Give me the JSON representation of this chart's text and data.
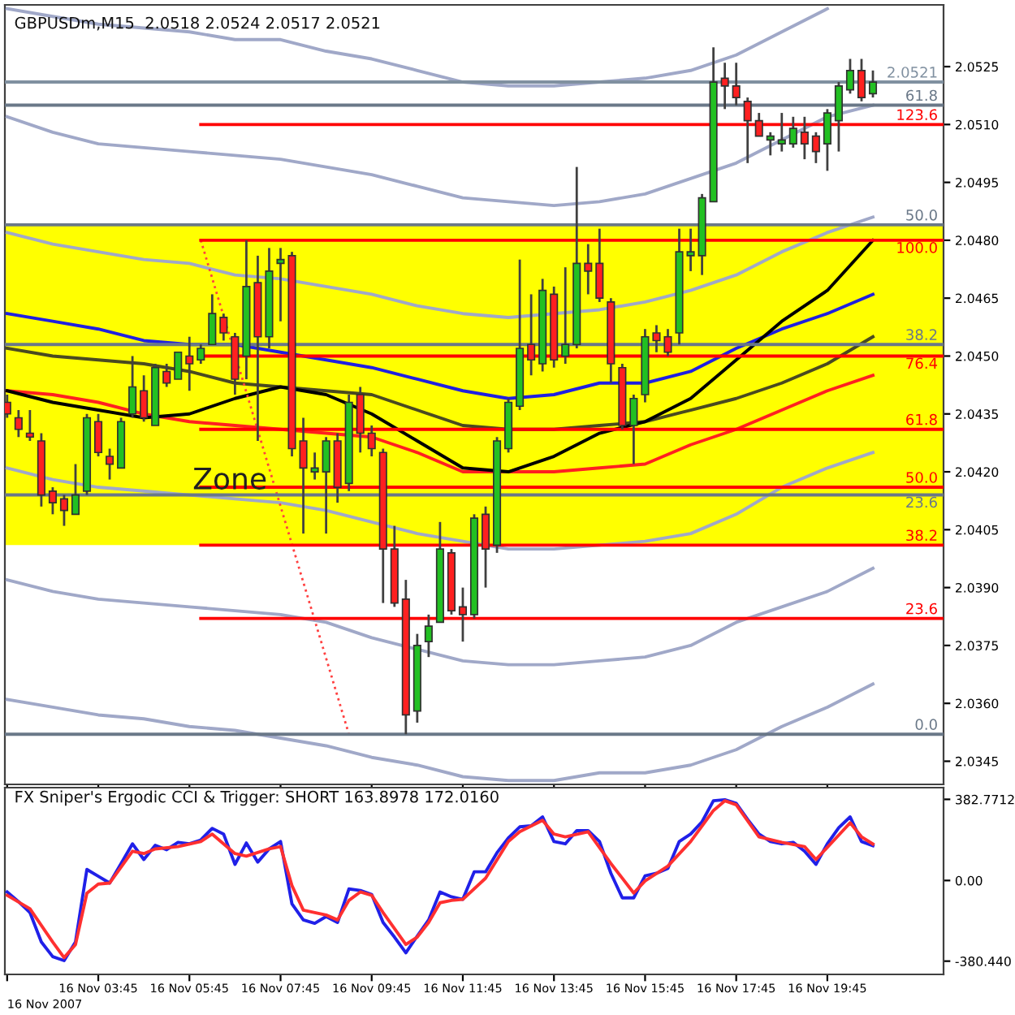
{
  "chart_data": [
    {
      "type": "candlestick",
      "title": "GBPUSDm,M15  2.0518 2.0524 2.0517 2.0521",
      "x": [
        "2007-11-16T01:45",
        "2007-11-16T02:00",
        "2007-11-16T02:15",
        "2007-11-16T02:30",
        "2007-11-16T02:45",
        "2007-11-16T03:00",
        "2007-11-16T03:15",
        "2007-11-16T03:30",
        "2007-11-16T03:45",
        "2007-11-16T04:00",
        "2007-11-16T04:15",
        "2007-11-16T04:30",
        "2007-11-16T04:45",
        "2007-11-16T05:00",
        "2007-11-16T05:15",
        "2007-11-16T05:30",
        "2007-11-16T05:45",
        "2007-11-16T06:00",
        "2007-11-16T06:15",
        "2007-11-16T06:30",
        "2007-11-16T06:45",
        "2007-11-16T07:00",
        "2007-11-16T07:15",
        "2007-11-16T07:30",
        "2007-11-16T07:45",
        "2007-11-16T08:00",
        "2007-11-16T08:15",
        "2007-11-16T08:30",
        "2007-11-16T08:45",
        "2007-11-16T09:00",
        "2007-11-16T09:15",
        "2007-11-16T09:30",
        "2007-11-16T09:45",
        "2007-11-16T10:00",
        "2007-11-16T10:15",
        "2007-11-16T10:30",
        "2007-11-16T10:45",
        "2007-11-16T11:00",
        "2007-11-16T11:15",
        "2007-11-16T11:30",
        "2007-11-16T11:45",
        "2007-11-16T12:00",
        "2007-11-16T12:15",
        "2007-11-16T12:30",
        "2007-11-16T12:45",
        "2007-11-16T13:00",
        "2007-11-16T13:15",
        "2007-11-16T13:30",
        "2007-11-16T13:45",
        "2007-11-16T14:00",
        "2007-11-16T14:15",
        "2007-11-16T14:30",
        "2007-11-16T14:45",
        "2007-11-16T15:00",
        "2007-11-16T15:15",
        "2007-11-16T15:30",
        "2007-11-16T15:45",
        "2007-11-16T16:00",
        "2007-11-16T16:15",
        "2007-11-16T16:30",
        "2007-11-16T16:45",
        "2007-11-16T17:00",
        "2007-11-16T17:15",
        "2007-11-16T17:30",
        "2007-11-16T17:45",
        "2007-11-16T18:00",
        "2007-11-16T18:15",
        "2007-11-16T18:30",
        "2007-11-16T18:45",
        "2007-11-16T19:00",
        "2007-11-16T19:15",
        "2007-11-16T19:30",
        "2007-11-16T19:45",
        "2007-11-16T20:00",
        "2007-11-16T20:15",
        "2007-11-16T20:30",
        "2007-11-16T20:45"
      ],
      "ohlc": [
        [
          2.0438,
          2.044,
          2.0434,
          2.0435
        ],
        [
          2.0434,
          2.0436,
          2.0429,
          2.0431
        ],
        [
          2.043,
          2.0436,
          2.0428,
          2.0429
        ],
        [
          2.0428,
          2.043,
          2.0411,
          2.0414
        ],
        [
          2.0415,
          2.0416,
          2.0409,
          2.0412
        ],
        [
          2.0413,
          2.0414,
          2.0406,
          2.041
        ],
        [
          2.0409,
          2.0422,
          2.0409,
          2.0414
        ],
        [
          2.0415,
          2.0435,
          2.0414,
          2.0434
        ],
        [
          2.0433,
          2.0435,
          2.0424,
          2.0425
        ],
        [
          2.0424,
          2.0426,
          2.0418,
          2.0422
        ],
        [
          2.0421,
          2.0434,
          2.0421,
          2.0433
        ],
        [
          2.0435,
          2.045,
          2.0434,
          2.0442
        ],
        [
          2.0441,
          2.0445,
          2.0433,
          2.0434
        ],
        [
          2.0432,
          2.0448,
          2.0432,
          2.0447
        ],
        [
          2.0446,
          2.0448,
          2.0442,
          2.0443
        ],
        [
          2.0444,
          2.0451,
          2.0444,
          2.0451
        ],
        [
          2.045,
          2.0455,
          2.0441,
          2.0448
        ],
        [
          2.0449,
          2.0453,
          2.0448,
          2.0452
        ],
        [
          2.0453,
          2.0466,
          2.0453,
          2.0461
        ],
        [
          2.046,
          2.0461,
          2.0454,
          2.0456
        ],
        [
          2.0455,
          2.0456,
          2.044,
          2.0444
        ],
        [
          2.045,
          2.048,
          2.0444,
          2.0468
        ],
        [
          2.0469,
          2.0476,
          2.0428,
          2.0455
        ],
        [
          2.0455,
          2.0478,
          2.0452,
          2.0472
        ],
        [
          2.0474,
          2.0478,
          2.0459,
          2.0475
        ],
        [
          2.0476,
          2.0477,
          2.0424,
          2.0426
        ],
        [
          2.0428,
          2.0434,
          2.0404,
          2.0421
        ],
        [
          2.042,
          2.0425,
          2.0418,
          2.0421
        ],
        [
          2.042,
          2.0429,
          2.0404,
          2.0428
        ],
        [
          2.0428,
          2.043,
          2.0412,
          2.0416
        ],
        [
          2.0417,
          2.044,
          2.0415,
          2.0438
        ],
        [
          2.044,
          2.0442,
          2.0425,
          2.043
        ],
        [
          2.043,
          2.0432,
          2.0424,
          2.0426
        ],
        [
          2.0425,
          2.0426,
          2.0386,
          2.04
        ],
        [
          2.04,
          2.0406,
          2.0385,
          2.0386
        ],
        [
          2.0387,
          2.0392,
          2.0352,
          2.0357
        ],
        [
          2.0358,
          2.0378,
          2.0355,
          2.0375
        ],
        [
          2.0376,
          2.0383,
          2.0372,
          2.038
        ],
        [
          2.0381,
          2.0407,
          2.0381,
          2.04
        ],
        [
          2.0399,
          2.04,
          2.0383,
          2.0384
        ],
        [
          2.0385,
          2.039,
          2.0376,
          2.0383
        ],
        [
          2.0383,
          2.0409,
          2.0382,
          2.0408
        ],
        [
          2.0409,
          2.0411,
          2.039,
          2.04
        ],
        [
          2.0401,
          2.0429,
          2.0399,
          2.0428
        ],
        [
          2.0426,
          2.0439,
          2.0425,
          2.0438
        ],
        [
          2.0437,
          2.0475,
          2.0436,
          2.0452
        ],
        [
          2.0453,
          2.0466,
          2.0445,
          2.0449
        ],
        [
          2.0448,
          2.047,
          2.0446,
          2.0467
        ],
        [
          2.0466,
          2.0468,
          2.0447,
          2.0449
        ],
        [
          2.045,
          2.0473,
          2.0448,
          2.0453
        ],
        [
          2.0453,
          2.0499,
          2.0452,
          2.0474
        ],
        [
          2.0474,
          2.0479,
          2.0466,
          2.0472
        ],
        [
          2.0474,
          2.0483,
          2.0464,
          2.0465
        ],
        [
          2.0464,
          2.0465,
          2.0443,
          2.0448
        ],
        [
          2.0447,
          2.0448,
          2.0431,
          2.0432
        ],
        [
          2.0432,
          2.044,
          2.0422,
          2.0439
        ],
        [
          2.044,
          2.0457,
          2.0438,
          2.0455
        ],
        [
          2.0456,
          2.0458,
          2.0451,
          2.0454
        ],
        [
          2.0455,
          2.0457,
          2.045,
          2.0451
        ],
        [
          2.0456,
          2.0483,
          2.0453,
          2.0477
        ],
        [
          2.0476,
          2.0483,
          2.0472,
          2.0477
        ],
        [
          2.0476,
          2.0492,
          2.0471,
          2.0491
        ],
        [
          2.049,
          2.053,
          2.049,
          2.0521
        ],
        [
          2.0522,
          2.0526,
          2.0514,
          2.052
        ],
        [
          2.052,
          2.0526,
          2.0515,
          2.0517
        ],
        [
          2.0516,
          2.0517,
          2.05,
          2.0511
        ],
        [
          2.0511,
          2.0513,
          2.0507,
          2.0507
        ],
        [
          2.0506,
          2.0508,
          2.0502,
          2.0507
        ],
        [
          2.0505,
          2.0513,
          2.0503,
          2.0506
        ],
        [
          2.0505,
          2.0512,
          2.0504,
          2.0509
        ],
        [
          2.0508,
          2.0512,
          2.0501,
          2.0505
        ],
        [
          2.0507,
          2.0508,
          2.05,
          2.0503
        ],
        [
          2.0505,
          2.0514,
          2.0498,
          2.0513
        ],
        [
          2.0511,
          2.0521,
          2.0503,
          2.052
        ],
        [
          2.0519,
          2.0527,
          2.0518,
          2.0524
        ],
        [
          2.0524,
          2.0527,
          2.0516,
          2.0517
        ],
        [
          2.0518,
          2.0524,
          2.0517,
          2.0521
        ]
      ],
      "colors": [
        "#ff2020",
        "#ff2020",
        "#ff2020",
        "#ff2020",
        "#ff2020",
        "#ff2020",
        "#22c022",
        "#22c022",
        "#ff2020",
        "#ff2020",
        "#22c022",
        "#22c022",
        "#ff2020",
        "#22c022",
        "#ff2020",
        "#22c022",
        "#ff2020",
        "#22c022",
        "#22c022",
        "#ff2020",
        "#ff2020",
        "#22c022",
        "#ff2020",
        "#22c022",
        "#22c022",
        "#ff2020",
        "#ff2020",
        "#22c022",
        "#22c022",
        "#ff2020",
        "#22c022",
        "#ff2020",
        "#ff2020",
        "#ff2020",
        "#ff2020",
        "#ff2020",
        "#22c022",
        "#22c022",
        "#22c022",
        "#ff2020",
        "#ff2020",
        "#22c022",
        "#ff2020",
        "#22c022",
        "#22c022",
        "#22c022",
        "#ff2020",
        "#22c022",
        "#ff2020",
        "#22c022",
        "#22c022",
        "#ff2020",
        "#ff2020",
        "#ff2020",
        "#ff2020",
        "#22c022",
        "#22c022",
        "#ff2020",
        "#ff2020",
        "#22c022",
        "#22c022",
        "#22c022",
        "#22c022",
        "#ff2020",
        "#ff2020",
        "#ff2020",
        "#ff2020",
        "#22c022",
        "#22c022",
        "#22c022",
        "#ff2020",
        "#ff2020",
        "#22c022",
        "#22c022",
        "#22c022",
        "#ff2020",
        "#22c022"
      ],
      "series": [
        {
          "type": "line",
          "color": "#a0a8c8",
          "x": [
            "2007-11-16T01:45",
            "2007-11-16T02:45",
            "2007-11-16T03:45",
            "2007-11-16T04:45",
            "2007-11-16T05:45",
            "2007-11-16T06:45",
            "2007-11-16T07:45",
            "2007-11-16T08:45",
            "2007-11-16T09:45",
            "2007-11-16T10:45",
            "2007-11-16T11:45",
            "2007-11-16T12:45",
            "2007-11-16T13:45",
            "2007-11-16T14:45",
            "2007-11-16T15:45",
            "2007-11-16T16:45",
            "2007-11-16T17:45",
            "2007-11-16T18:45",
            "2007-11-16T19:45"
          ],
          "values": [
            2.054,
            2.0538,
            2.0536,
            2.0535,
            2.0534,
            2.0532,
            2.0532,
            2.0529,
            2.0527,
            2.0524,
            2.0521,
            2.052,
            2.052,
            2.0521,
            2.0522,
            2.0524,
            2.0528,
            2.0534,
            2.054
          ]
        },
        {
          "type": "line",
          "color": "#a0a8c8",
          "x": [
            "2007-11-16T01:45",
            "2007-11-16T02:45",
            "2007-11-16T03:45",
            "2007-11-16T04:45",
            "2007-11-16T05:45",
            "2007-11-16T06:45",
            "2007-11-16T07:45",
            "2007-11-16T08:45",
            "2007-11-16T09:45",
            "2007-11-16T10:45",
            "2007-11-16T11:45",
            "2007-11-16T12:45",
            "2007-11-16T13:45",
            "2007-11-16T14:45",
            "2007-11-16T15:45",
            "2007-11-16T16:45",
            "2007-11-16T17:45",
            "2007-11-16T18:45",
            "2007-11-16T19:45",
            "2007-11-16T20:45"
          ],
          "values": [
            2.0512,
            2.0508,
            2.0505,
            2.0504,
            2.0503,
            2.0502,
            2.0501,
            2.0499,
            2.0497,
            2.0494,
            2.0491,
            2.049,
            2.0489,
            2.049,
            2.0492,
            2.0496,
            2.05,
            2.0506,
            2.0512,
            2.0515
          ]
        },
        {
          "type": "line",
          "color": "#a0a8c8",
          "x": [
            "2007-11-16T01:45",
            "2007-11-16T02:45",
            "2007-11-16T03:45",
            "2007-11-16T04:45",
            "2007-11-16T05:45",
            "2007-11-16T06:45",
            "2007-11-16T07:45",
            "2007-11-16T08:45",
            "2007-11-16T09:45",
            "2007-11-16T10:45",
            "2007-11-16T11:45",
            "2007-11-16T12:45",
            "2007-11-16T13:45",
            "2007-11-16T14:45",
            "2007-11-16T15:45",
            "2007-11-16T16:45",
            "2007-11-16T17:45",
            "2007-11-16T18:45",
            "2007-11-16T19:45",
            "2007-11-16T20:45"
          ],
          "values": [
            2.0482,
            2.0479,
            2.0477,
            2.0475,
            2.0474,
            2.0471,
            2.047,
            2.0468,
            2.0466,
            2.0463,
            2.0461,
            2.046,
            2.0461,
            2.0462,
            2.0464,
            2.0467,
            2.0471,
            2.0477,
            2.0482,
            2.0486
          ]
        },
        {
          "type": "line",
          "color": "#a0a8c8",
          "x": [
            "2007-11-16T01:45",
            "2007-11-16T02:45",
            "2007-11-16T03:45",
            "2007-11-16T04:45",
            "2007-11-16T05:45",
            "2007-11-16T06:45",
            "2007-11-16T07:45",
            "2007-11-16T08:45",
            "2007-11-16T09:45",
            "2007-11-16T10:45",
            "2007-11-16T11:45",
            "2007-11-16T12:45",
            "2007-11-16T13:45",
            "2007-11-16T14:45",
            "2007-11-16T15:45",
            "2007-11-16T16:45",
            "2007-11-16T17:45",
            "2007-11-16T18:45",
            "2007-11-16T19:45",
            "2007-11-16T20:45"
          ],
          "values": [
            2.0421,
            2.0418,
            2.0416,
            2.0415,
            2.0414,
            2.0413,
            2.0412,
            2.041,
            2.0407,
            2.0404,
            2.0402,
            2.04,
            2.04,
            2.0401,
            2.0402,
            2.0404,
            2.0409,
            2.0416,
            2.0421,
            2.0425
          ]
        },
        {
          "type": "line",
          "color": "#a0a8c8",
          "x": [
            "2007-11-16T01:45",
            "2007-11-16T02:45",
            "2007-11-16T03:45",
            "2007-11-16T04:45",
            "2007-11-16T05:45",
            "2007-11-16T06:45",
            "2007-11-16T07:45",
            "2007-11-16T08:45",
            "2007-11-16T09:45",
            "2007-11-16T10:45",
            "2007-11-16T11:45",
            "2007-11-16T12:45",
            "2007-11-16T13:45",
            "2007-11-16T14:45",
            "2007-11-16T15:45",
            "2007-11-16T16:45",
            "2007-11-16T17:45",
            "2007-11-16T18:45",
            "2007-11-16T19:45",
            "2007-11-16T20:45"
          ],
          "values": [
            2.0392,
            2.0389,
            2.0387,
            2.0386,
            2.0385,
            2.0384,
            2.0383,
            2.0381,
            2.0377,
            2.0374,
            2.0371,
            2.037,
            2.037,
            2.0371,
            2.0372,
            2.0375,
            2.0381,
            2.0385,
            2.0389,
            2.0395
          ]
        },
        {
          "type": "line",
          "color": "#a0a8c8",
          "x": [
            "2007-11-16T01:45",
            "2007-11-16T02:45",
            "2007-11-16T03:45",
            "2007-11-16T04:45",
            "2007-11-16T05:45",
            "2007-11-16T06:45",
            "2007-11-16T07:45",
            "2007-11-16T08:45",
            "2007-11-16T09:45",
            "2007-11-16T10:45",
            "2007-11-16T11:45",
            "2007-11-16T12:45",
            "2007-11-16T13:45",
            "2007-11-16T14:45",
            "2007-11-16T15:45",
            "2007-11-16T16:45",
            "2007-11-16T17:45",
            "2007-11-16T18:45",
            "2007-11-16T19:45",
            "2007-11-16T20:45"
          ],
          "values": [
            2.0361,
            2.0359,
            2.0357,
            2.0356,
            2.0354,
            2.0353,
            2.0351,
            2.0349,
            2.0346,
            2.0344,
            2.0341,
            2.034,
            2.034,
            2.0342,
            2.0342,
            2.0344,
            2.0348,
            2.0354,
            2.0359,
            2.0365
          ]
        },
        {
          "type": "line",
          "color": "#4a4a20",
          "x": [
            "2007-11-16T01:45",
            "2007-11-16T02:45",
            "2007-11-16T03:45",
            "2007-11-16T04:45",
            "2007-11-16T05:45",
            "2007-11-16T06:45",
            "2007-11-16T07:45",
            "2007-11-16T08:45",
            "2007-11-16T09:45",
            "2007-11-16T10:45",
            "2007-11-16T11:45",
            "2007-11-16T12:45",
            "2007-11-16T13:45",
            "2007-11-16T14:45",
            "2007-11-16T15:45",
            "2007-11-16T16:45",
            "2007-11-16T17:45",
            "2007-11-16T18:45",
            "2007-11-16T19:45",
            "2007-11-16T20:45"
          ],
          "values": [
            2.0452,
            2.045,
            2.0449,
            2.0448,
            2.0446,
            2.0443,
            2.0442,
            2.0441,
            2.044,
            2.0436,
            2.0432,
            2.0431,
            2.0431,
            2.0432,
            2.0433,
            2.0436,
            2.0439,
            2.0443,
            2.0448,
            2.0455
          ]
        },
        {
          "type": "line",
          "color": "#ff2020",
          "x": [
            "2007-11-16T01:45",
            "2007-11-16T02:45",
            "2007-11-16T03:45",
            "2007-11-16T04:45",
            "2007-11-16T05:45",
            "2007-11-16T06:45",
            "2007-11-16T07:45",
            "2007-11-16T08:45",
            "2007-11-16T09:45",
            "2007-11-16T10:45",
            "2007-11-16T11:45",
            "2007-11-16T12:45",
            "2007-11-16T13:45",
            "2007-11-16T14:45",
            "2007-11-16T15:45",
            "2007-11-16T16:45",
            "2007-11-16T17:45",
            "2007-11-16T18:45",
            "2007-11-16T19:45",
            "2007-11-16T20:45"
          ],
          "values": [
            2.0441,
            2.044,
            2.0438,
            2.0435,
            2.0433,
            2.0432,
            2.0431,
            2.043,
            2.0429,
            2.0425,
            2.042,
            2.042,
            2.042,
            2.0421,
            2.0422,
            2.0427,
            2.0431,
            2.0436,
            2.0441,
            2.0445
          ]
        },
        {
          "type": "line",
          "color": "#2020e0",
          "x": [
            "2007-11-16T01:45",
            "2007-11-16T02:45",
            "2007-11-16T03:45",
            "2007-11-16T04:45",
            "2007-11-16T05:45",
            "2007-11-16T06:45",
            "2007-11-16T07:45",
            "2007-11-16T08:45",
            "2007-11-16T09:45",
            "2007-11-16T10:45",
            "2007-11-16T11:45",
            "2007-11-16T12:45",
            "2007-11-16T13:45",
            "2007-11-16T14:45",
            "2007-11-16T15:45",
            "2007-11-16T16:45",
            "2007-11-16T17:45",
            "2007-11-16T18:45",
            "2007-11-16T19:45",
            "2007-11-16T20:45"
          ],
          "values": [
            2.0461,
            2.0459,
            2.0457,
            2.0454,
            2.0453,
            2.0453,
            2.0451,
            2.0449,
            2.0447,
            2.0444,
            2.0441,
            2.0439,
            2.044,
            2.0443,
            2.0443,
            2.0446,
            2.0452,
            2.0457,
            2.0461,
            2.0466
          ]
        },
        {
          "type": "line",
          "color": "#000000",
          "x": [
            "2007-11-16T01:45",
            "2007-11-16T02:45",
            "2007-11-16T03:45",
            "2007-11-16T04:45",
            "2007-11-16T05:45",
            "2007-11-16T06:45",
            "2007-11-16T07:45",
            "2007-11-16T08:45",
            "2007-11-16T09:45",
            "2007-11-16T10:45",
            "2007-11-16T11:45",
            "2007-11-16T12:45",
            "2007-11-16T13:45",
            "2007-11-16T14:45",
            "2007-11-16T15:45",
            "2007-11-16T16:45",
            "2007-11-16T17:45",
            "2007-11-16T18:45",
            "2007-11-16T19:45",
            "2007-11-16T20:45"
          ],
          "values": [
            2.0441,
            2.0438,
            2.0436,
            2.0434,
            2.0435,
            2.0439,
            2.0442,
            2.044,
            2.0435,
            2.0428,
            2.0421,
            2.042,
            2.0424,
            2.043,
            2.0433,
            2.0439,
            2.0449,
            2.0459,
            2.0467,
            2.048
          ]
        },
        {
          "type": "line",
          "color": "#ff4040",
          "line_style": "dotted",
          "x": [
            "2007-11-16T06:00",
            "2007-11-16T09:15"
          ],
          "values": [
            2.048,
            2.0352
          ]
        },
        {
          "type": "line",
          "name": "2.0521",
          "color": "#8090a0",
          "x": [
            "2007-11-16T01:42",
            "2007-11-16T22:18"
          ],
          "values": [
            2.0521,
            2.0521
          ]
        },
        {
          "type": "line",
          "name": "61.8",
          "color": "#6a7888",
          "x": [
            "2007-11-16T01:42",
            "2007-11-16T22:18"
          ],
          "values": [
            2.0515,
            2.0515
          ]
        },
        {
          "type": "line",
          "name": "123.6",
          "color": "#ff0000",
          "x": [
            "2007-11-16T06:00",
            "2007-11-16T22:18"
          ],
          "values": [
            2.051,
            2.051
          ]
        },
        {
          "type": "line",
          "name": "50.0",
          "color": "#6a7888",
          "x": [
            "2007-11-16T01:42",
            "2007-11-16T22:18"
          ],
          "values": [
            2.0484,
            2.0484
          ]
        },
        {
          "type": "line",
          "name": "100.0",
          "color": "#ff0000",
          "x": [
            "2007-11-16T06:00",
            "2007-11-16T22:18"
          ],
          "values": [
            2.048,
            2.048
          ]
        },
        {
          "type": "line",
          "name": "38.2",
          "color": "#6a7888",
          "x": [
            "2007-11-16T01:42",
            "2007-11-16T22:18"
          ],
          "values": [
            2.0453,
            2.0453
          ]
        },
        {
          "type": "line",
          "name": "76.4",
          "color": "#ff0000",
          "x": [
            "2007-11-16T06:00",
            "2007-11-16T22:18"
          ],
          "values": [
            2.045,
            2.045
          ]
        },
        {
          "type": "line",
          "name": "61.8",
          "color": "#ff0000",
          "x": [
            "2007-11-16T06:00",
            "2007-11-16T22:18"
          ],
          "values": [
            2.0431,
            2.0431
          ]
        },
        {
          "type": "line",
          "name": "50.0",
          "color": "#ff0000",
          "x": [
            "2007-11-16T06:00",
            "2007-11-16T22:18"
          ],
          "values": [
            2.0416,
            2.0416
          ]
        },
        {
          "type": "line",
          "name": "23.6",
          "color": "#6a7888",
          "x": [
            "2007-11-16T01:42",
            "2007-11-16T22:18"
          ],
          "values": [
            2.0414,
            2.0414
          ]
        },
        {
          "type": "line",
          "name": "38.2",
          "color": "#ff0000",
          "x": [
            "2007-11-16T06:00",
            "2007-11-16T22:18"
          ],
          "values": [
            2.0401,
            2.0401
          ]
        },
        {
          "type": "line",
          "name": "23.6",
          "color": "#ff0000",
          "x": [
            "2007-11-16T06:00",
            "2007-11-16T22:18"
          ],
          "values": [
            2.0382,
            2.0382
          ]
        },
        {
          "type": "line",
          "name": "0.0",
          "color": "#6a7888",
          "x": [
            "2007-11-16T01:42",
            "2007-11-16T22:18"
          ],
          "values": [
            2.0352,
            2.0352
          ]
        }
      ],
      "bands": [
        {
          "axis": "y",
          "from": 2.0401,
          "to": 2.0484,
          "label": "Zone",
          "color": "#ffff00"
        }
      ],
      "xlim": [
        "2007-11-16T01:42",
        "2007-11-16T22:18"
      ],
      "ylim": [
        2.0339,
        2.0541
      ],
      "xticks": [
        {
          "value": "2007-11-16T01:45",
          "label": null
        },
        {
          "value": "2007-11-16T03:45",
          "label": null
        },
        {
          "value": "2007-11-16T05:45",
          "label": null
        },
        {
          "value": "2007-11-16T07:45",
          "label": null
        },
        {
          "value": "2007-11-16T09:45",
          "label": null
        },
        {
          "value": "2007-11-16T11:45",
          "label": null
        },
        {
          "value": "2007-11-16T13:45",
          "label": null
        },
        {
          "value": "2007-11-16T15:45",
          "label": null
        },
        {
          "value": "2007-11-16T17:45",
          "label": null
        },
        {
          "value": "2007-11-16T19:45",
          "label": null
        }
      ],
      "yticks": [
        2.0525,
        {
          "value": 2.051,
          "label": "2.0510"
        },
        2.0495,
        {
          "value": 2.048,
          "label": "2.0480"
        },
        2.0465,
        {
          "value": 2.045,
          "label": "2.0450"
        },
        2.0435,
        {
          "value": 2.042,
          "label": "2.0420"
        },
        2.0405,
        {
          "value": 2.039,
          "label": "2.0390"
        },
        2.0375,
        {
          "value": 2.036,
          "label": "2.0360"
        },
        2.0345
      ],
      "tick_labels": "y"
    },
    {
      "type": "line",
      "title": "FX Sniper's Ergodic CCI & Trigger: SHORT 163.8978 172.0160",
      "x": [
        "2007-11-16T01:45",
        "2007-11-16T02:00",
        "2007-11-16T02:15",
        "2007-11-16T02:30",
        "2007-11-16T02:45",
        "2007-11-16T03:00",
        "2007-11-16T03:15",
        "2007-11-16T03:30",
        "2007-11-16T03:45",
        "2007-11-16T04:00",
        "2007-11-16T04:15",
        "2007-11-16T04:30",
        "2007-11-16T04:45",
        "2007-11-16T05:00",
        "2007-11-16T05:15",
        "2007-11-16T05:30",
        "2007-11-16T05:45",
        "2007-11-16T06:00",
        "2007-11-16T06:15",
        "2007-11-16T06:30",
        "2007-11-16T06:45",
        "2007-11-16T07:00",
        "2007-11-16T07:15",
        "2007-11-16T07:30",
        "2007-11-16T07:45",
        "2007-11-16T08:00",
        "2007-11-16T08:15",
        "2007-11-16T08:30",
        "2007-11-16T08:45",
        "2007-11-16T09:00",
        "2007-11-16T09:15",
        "2007-11-16T09:30",
        "2007-11-16T09:45",
        "2007-11-16T10:00",
        "2007-11-16T10:15",
        "2007-11-16T10:30",
        "2007-11-16T10:45",
        "2007-11-16T11:00",
        "2007-11-16T11:15",
        "2007-11-16T11:30",
        "2007-11-16T11:45",
        "2007-11-16T12:00",
        "2007-11-16T12:15",
        "2007-11-16T12:30",
        "2007-11-16T12:45",
        "2007-11-16T13:00",
        "2007-11-16T13:15",
        "2007-11-16T13:30",
        "2007-11-16T13:45",
        "2007-11-16T14:00",
        "2007-11-16T14:15",
        "2007-11-16T14:30",
        "2007-11-16T14:45",
        "2007-11-16T15:00",
        "2007-11-16T15:15",
        "2007-11-16T15:30",
        "2007-11-16T15:45",
        "2007-11-16T16:00",
        "2007-11-16T16:15",
        "2007-11-16T16:30",
        "2007-11-16T16:45",
        "2007-11-16T17:00",
        "2007-11-16T17:15",
        "2007-11-16T17:30",
        "2007-11-16T17:45",
        "2007-11-16T18:00",
        "2007-11-16T18:15",
        "2007-11-16T18:30",
        "2007-11-16T18:45",
        "2007-11-16T19:00",
        "2007-11-16T19:15",
        "2007-11-16T19:30",
        "2007-11-16T19:45",
        "2007-11-16T20:00",
        "2007-11-16T20:15",
        "2007-11-16T20:30",
        "2007-11-16T20:45"
      ],
      "series": [
        {
          "color": "#2020e8",
          "values": [
            -54,
            -100,
            -151,
            -290,
            -359,
            -378,
            -290,
            52,
            20,
            -12,
            80,
            173,
            99,
            166,
            145,
            180,
            173,
            191,
            246,
            219,
            76,
            177,
            87,
            149,
            184,
            -110,
            -186,
            -202,
            -170,
            -198,
            -40,
            -47,
            -66,
            -198,
            -267,
            -341,
            -262,
            -186,
            -54,
            -77,
            -89,
            41,
            41,
            131,
            201,
            253,
            258,
            300,
            184,
            173,
            235,
            235,
            184,
            34,
            -82,
            -82,
            22,
            34,
            57,
            184,
            219,
            277,
            376,
            381,
            364,
            288,
            219,
            184,
            173,
            180,
            138,
            76,
            173,
            249,
            300,
            184,
            164
          ]
        },
        {
          "color": "#ff3030",
          "x": [
            "2007-11-16T01:45",
            "2007-11-16T02:15",
            "2007-11-16T02:45",
            "2007-11-16T03:00",
            "2007-11-16T03:15",
            "2007-11-16T03:30",
            "2007-11-16T03:45",
            "2007-11-16T04:00",
            "2007-11-16T04:30",
            "2007-11-16T04:45",
            "2007-11-16T05:00",
            "2007-11-16T05:30",
            "2007-11-16T06:00",
            "2007-11-16T06:15",
            "2007-11-16T06:45",
            "2007-11-16T07:00",
            "2007-11-16T07:30",
            "2007-11-16T07:45",
            "2007-11-16T08:00",
            "2007-11-16T08:15",
            "2007-11-16T08:45",
            "2007-11-16T09:00",
            "2007-11-16T09:15",
            "2007-11-16T09:30",
            "2007-11-16T09:45",
            "2007-11-16T10:00",
            "2007-11-16T10:30",
            "2007-11-16T10:45",
            "2007-11-16T11:00",
            "2007-11-16T11:15",
            "2007-11-16T11:30",
            "2007-11-16T11:45",
            "2007-11-16T12:15",
            "2007-11-16T12:45",
            "2007-11-16T13:00",
            "2007-11-16T13:30",
            "2007-11-16T13:45",
            "2007-11-16T14:00",
            "2007-11-16T14:30",
            "2007-11-16T15:00",
            "2007-11-16T15:30",
            "2007-11-16T15:45",
            "2007-11-16T16:15",
            "2007-11-16T16:45",
            "2007-11-16T17:15",
            "2007-11-16T17:30",
            "2007-11-16T17:45",
            "2007-11-16T18:15",
            "2007-11-16T18:45",
            "2007-11-16T19:15",
            "2007-11-16T19:30",
            "2007-11-16T20:00",
            "2007-11-16T20:15",
            "2007-11-16T20:30",
            "2007-11-16T20:45"
          ],
          "values": [
            -70,
            -133,
            -290,
            -364,
            -302,
            -60,
            -17,
            -12,
            138,
            127,
            149,
            160,
            184,
            219,
            127,
            115,
            149,
            160,
            -24,
            -140,
            -163,
            -186,
            -94,
            -54,
            -70,
            -151,
            -302,
            -267,
            -198,
            -105,
            -94,
            -89,
            11,
            184,
            230,
            284,
            219,
            206,
            230,
            80,
            -59,
            -2,
            68,
            184,
            330,
            376,
            357,
            206,
            180,
            160,
            99,
            214,
            272,
            206,
            172
          ]
        }
      ],
      "xlim": [
        "2007-11-16T01:42",
        "2007-11-16T22:18"
      ],
      "ylim": [
        -443,
        438
      ],
      "annotations": [
        "16 Nov 2007"
      ],
      "xticks": [
        {
          "value": "2007-11-16T01:45",
          "label": null
        },
        {
          "value": "2007-11-16T03:45",
          "label": "16 Nov 03:45"
        },
        {
          "value": "2007-11-16T05:45",
          "label": "16 Nov 05:45"
        },
        {
          "value": "2007-11-16T07:45",
          "label": "16 Nov 07:45"
        },
        {
          "value": "2007-11-16T09:45",
          "label": "16 Nov 09:45"
        },
        {
          "value": "2007-11-16T11:45",
          "label": "16 Nov 11:45"
        },
        {
          "value": "2007-11-16T13:45",
          "label": "16 Nov 13:45"
        },
        {
          "value": "2007-11-16T15:45",
          "label": "16 Nov 15:45"
        },
        {
          "value": "2007-11-16T17:45",
          "label": "16 Nov 17:45"
        },
        {
          "value": "2007-11-16T19:45",
          "label": "16 Nov 19:45"
        }
      ],
      "yticks": [
        {
          "value": 382.7712,
          "label": "382.7712"
        },
        {
          "value": 0,
          "label": "0.00"
        },
        {
          "value": -380.44,
          "label": "-380.440"
        }
      ]
    }
  ]
}
